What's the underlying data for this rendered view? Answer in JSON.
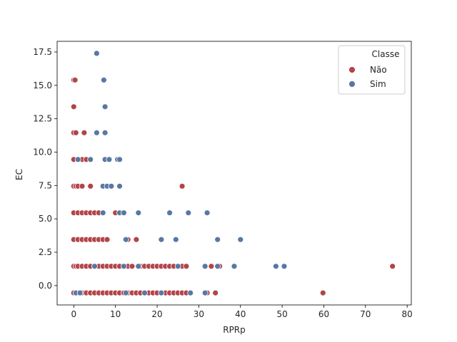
{
  "chart_data": {
    "type": "scatter",
    "title": "",
    "xlabel": "RPRp",
    "ylabel": "EC",
    "xlim": [
      -4,
      81
    ],
    "ylim": [
      -1.45,
      18.3
    ],
    "xticks": [
      "0",
      "10",
      "20",
      "30",
      "40",
      "50",
      "60",
      "70",
      "80"
    ],
    "xtick_values": [
      0,
      10,
      20,
      30,
      40,
      50,
      60,
      70,
      80
    ],
    "yticks": [
      "0.0",
      "2.5",
      "5.0",
      "7.5",
      "10.0",
      "12.5",
      "15.0",
      "17.5"
    ],
    "ytick_values": [
      0,
      2.5,
      5,
      7.5,
      10,
      12.5,
      15,
      17.5
    ],
    "grid": false,
    "legend": {
      "title": "Classe",
      "placement": "upper right"
    },
    "series": [
      {
        "name": "Não",
        "color": "#b24448",
        "points": [
          [
            0,
            -0.55
          ],
          [
            0.5,
            -0.55
          ],
          [
            1,
            -0.55
          ],
          [
            2,
            -0.55
          ],
          [
            3,
            -0.55
          ],
          [
            4,
            -0.55
          ],
          [
            5,
            -0.55
          ],
          [
            6,
            -0.55
          ],
          [
            7,
            -0.55
          ],
          [
            8,
            -0.55
          ],
          [
            9,
            -0.55
          ],
          [
            10,
            -0.55
          ],
          [
            11,
            -0.55
          ],
          [
            12,
            -0.55
          ],
          [
            13,
            -0.55
          ],
          [
            14,
            -0.55
          ],
          [
            15,
            -0.55
          ],
          [
            16,
            -0.55
          ],
          [
            18,
            -0.55
          ],
          [
            19,
            -0.55
          ],
          [
            20,
            -0.55
          ],
          [
            22,
            -0.55
          ],
          [
            23,
            -0.55
          ],
          [
            24,
            -0.55
          ],
          [
            25,
            -0.55
          ],
          [
            26,
            -0.55
          ],
          [
            27,
            -0.55
          ],
          [
            32,
            -0.55
          ],
          [
            34,
            -0.55
          ],
          [
            59.8,
            -0.55
          ],
          [
            0,
            1.45
          ],
          [
            0.5,
            1.45
          ],
          [
            1,
            1.45
          ],
          [
            2,
            1.45
          ],
          [
            3,
            1.45
          ],
          [
            4,
            1.45
          ],
          [
            5,
            1.45
          ],
          [
            6,
            1.45
          ],
          [
            7,
            1.45
          ],
          [
            8,
            1.45
          ],
          [
            9,
            1.45
          ],
          [
            10,
            1.45
          ],
          [
            11,
            1.45
          ],
          [
            13,
            1.45
          ],
          [
            14,
            1.45
          ],
          [
            16,
            1.45
          ],
          [
            17,
            1.45
          ],
          [
            18,
            1.45
          ],
          [
            19,
            1.45
          ],
          [
            20,
            1.45
          ],
          [
            21,
            1.45
          ],
          [
            22,
            1.45
          ],
          [
            23,
            1.45
          ],
          [
            24,
            1.45
          ],
          [
            26,
            1.45
          ],
          [
            27,
            1.45
          ],
          [
            33,
            1.45
          ],
          [
            35,
            1.45
          ],
          [
            76.5,
            1.45
          ],
          [
            0,
            3.45
          ],
          [
            1,
            3.45
          ],
          [
            2,
            3.45
          ],
          [
            3,
            3.45
          ],
          [
            4,
            3.45
          ],
          [
            5,
            3.45
          ],
          [
            6,
            3.45
          ],
          [
            7,
            3.45
          ],
          [
            8,
            3.45
          ],
          [
            13,
            3.45
          ],
          [
            15,
            3.45
          ],
          [
            0,
            5.45
          ],
          [
            1,
            5.45
          ],
          [
            2,
            5.45
          ],
          [
            3,
            5.45
          ],
          [
            4,
            5.45
          ],
          [
            5,
            5.45
          ],
          [
            6,
            5.45
          ],
          [
            10,
            5.45
          ],
          [
            0,
            7.45
          ],
          [
            0.5,
            7.45
          ],
          [
            1,
            7.45
          ],
          [
            2,
            7.45
          ],
          [
            4,
            7.45
          ],
          [
            26,
            7.45
          ],
          [
            0,
            9.45
          ],
          [
            2,
            9.45
          ],
          [
            3,
            9.45
          ],
          [
            0,
            11.45
          ],
          [
            0.5,
            11.45
          ],
          [
            2.5,
            11.45
          ],
          [
            0,
            13.4
          ],
          [
            0,
            15.4
          ],
          [
            0.3,
            15.4
          ]
        ]
      },
      {
        "name": "Sim",
        "color": "#5778a4",
        "points": [
          [
            0.5,
            -0.55
          ],
          [
            1.5,
            -0.55
          ],
          [
            12.5,
            -0.55
          ],
          [
            17,
            -0.55
          ],
          [
            21,
            -0.55
          ],
          [
            28,
            -0.55
          ],
          [
            31.5,
            -0.55
          ],
          [
            5,
            1.45
          ],
          [
            12,
            1.45
          ],
          [
            15.5,
            1.45
          ],
          [
            25,
            1.45
          ],
          [
            31.5,
            1.45
          ],
          [
            34.5,
            1.45
          ],
          [
            38.5,
            1.45
          ],
          [
            48.5,
            1.45
          ],
          [
            50.5,
            1.45
          ],
          [
            12.5,
            3.45
          ],
          [
            21,
            3.45
          ],
          [
            24.5,
            3.45
          ],
          [
            34.5,
            3.45
          ],
          [
            40,
            3.45
          ],
          [
            7,
            5.45
          ],
          [
            11,
            5.45
          ],
          [
            12,
            5.45
          ],
          [
            15.5,
            5.45
          ],
          [
            23,
            5.45
          ],
          [
            27.5,
            5.45
          ],
          [
            32,
            5.45
          ],
          [
            7,
            7.45
          ],
          [
            8,
            7.45
          ],
          [
            9,
            7.45
          ],
          [
            11,
            7.45
          ],
          [
            1,
            9.45
          ],
          [
            4,
            9.45
          ],
          [
            7.5,
            9.45
          ],
          [
            8.5,
            9.45
          ],
          [
            10.5,
            9.45
          ],
          [
            11,
            9.45
          ],
          [
            5.5,
            11.45
          ],
          [
            7.5,
            11.45
          ],
          [
            7.5,
            13.4
          ],
          [
            7.2,
            15.4
          ],
          [
            5.5,
            17.4
          ]
        ]
      }
    ]
  }
}
